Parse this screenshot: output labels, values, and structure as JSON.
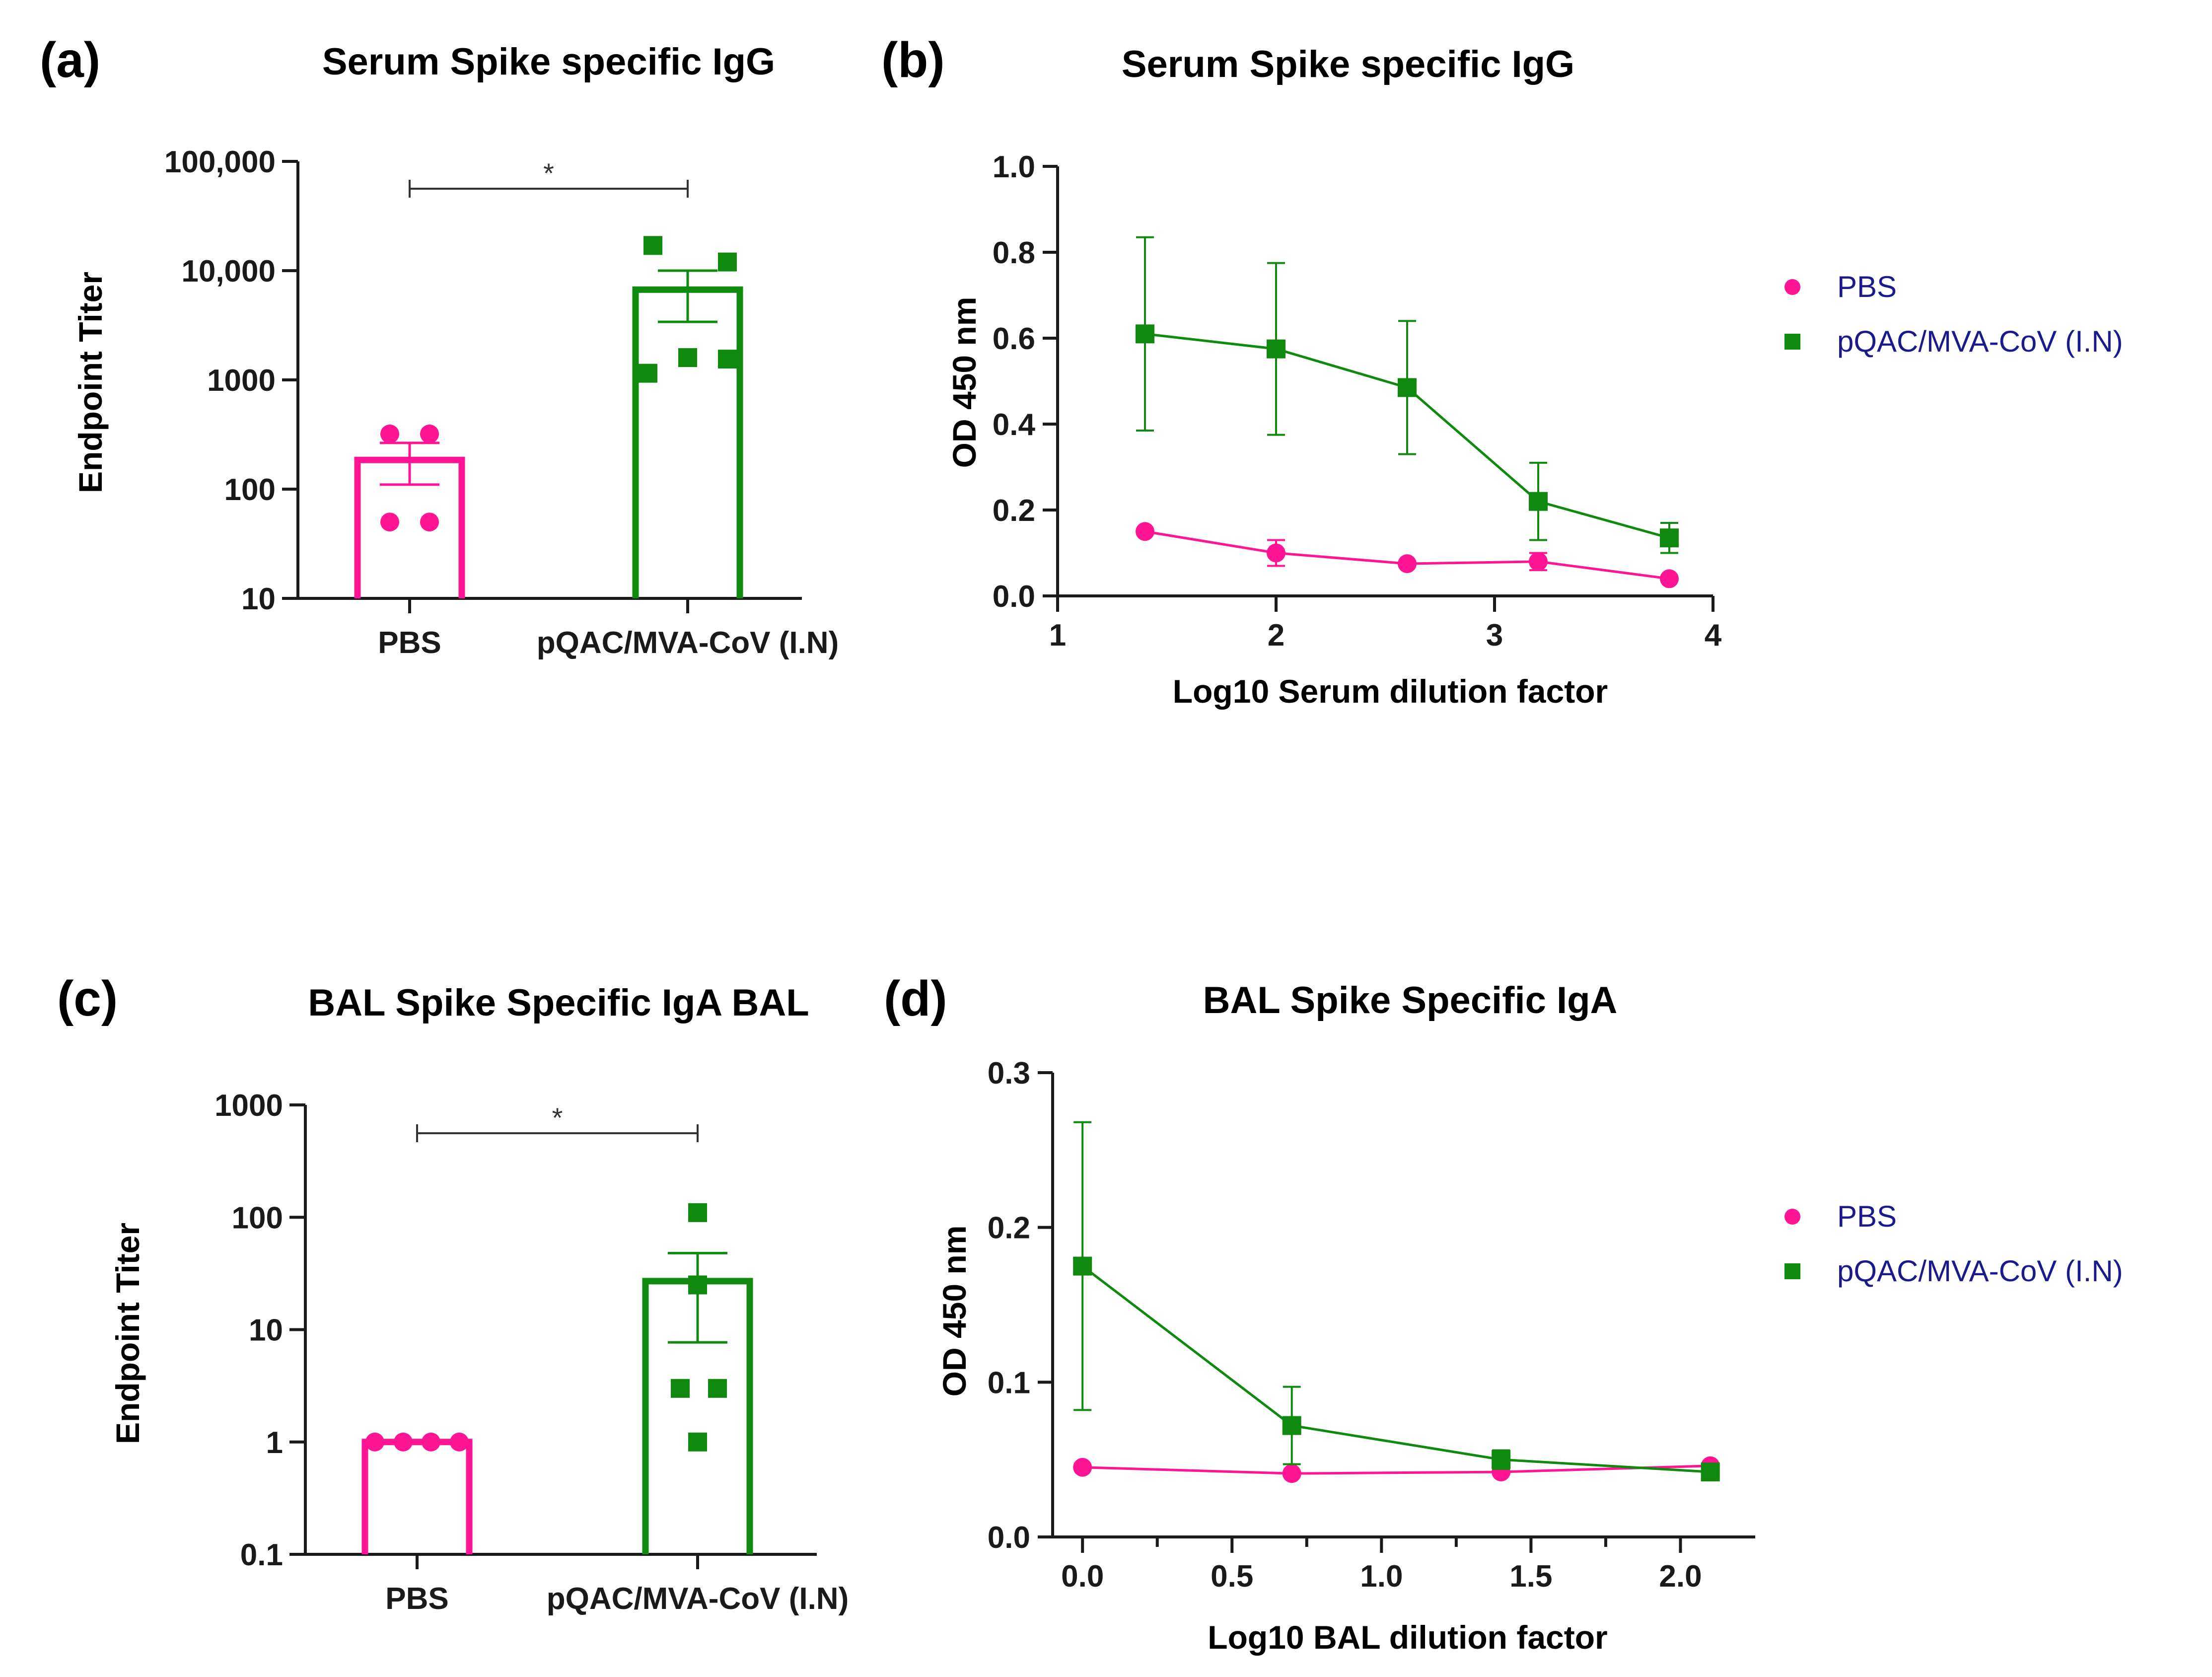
{
  "colors": {
    "pbs": "#ff1493",
    "mva": "#0f8a0f",
    "axis": "#1a1a1a",
    "legend_text": "#1a1a8c"
  },
  "chart_data": [
    {
      "panel": "(a)",
      "type": "bar",
      "title": "Serum Spike specific IgG",
      "ylabel": "Endpoint Titer",
      "xlabel": "",
      "yscale": "log",
      "ylim": [
        10,
        100000
      ],
      "yticks": [
        10,
        100,
        1000,
        10000,
        100000
      ],
      "ytick_labels": [
        "10",
        "100",
        "1000",
        "10,000",
        "100,000"
      ],
      "categories": [
        "PBS",
        "pQAC/MVA-CoV (I.N)"
      ],
      "bar_colors": [
        "pbs",
        "mva"
      ],
      "values": [
        185,
        6700
      ],
      "error_low": [
        110,
        3400
      ],
      "error_high": [
        265,
        10000
      ],
      "points": [
        [
          320,
          320,
          50,
          50
        ],
        [
          17000,
          12000,
          1150,
          1600,
          1550
        ]
      ],
      "markers": [
        "circle",
        "square"
      ],
      "significance": {
        "label": "*",
        "from": 0,
        "to": 1
      }
    },
    {
      "panel": "(b)",
      "type": "line",
      "title": "Serum Spike specific IgG",
      "xlabel": "Log10 Serum dilution factor",
      "ylabel": "OD 450 nm",
      "xlim": [
        1,
        4
      ],
      "ylim": [
        0,
        1.0
      ],
      "xticks": [
        1,
        2,
        3,
        4
      ],
      "xtick_labels": [
        "1",
        "2",
        "3",
        "4"
      ],
      "yticks": [
        0,
        0.2,
        0.4,
        0.6,
        0.8,
        1.0
      ],
      "ytick_labels": [
        "0.0",
        "0.2",
        "0.4",
        "0.6",
        "0.8",
        "1.0"
      ],
      "series": [
        {
          "name": "PBS",
          "color": "pbs",
          "marker": "circle",
          "x": [
            1.4,
            2.0,
            2.6,
            3.2,
            3.8
          ],
          "y": [
            0.15,
            0.1,
            0.075,
            0.08,
            0.04
          ],
          "err": [
            0,
            0.03,
            0,
            0.02,
            0
          ]
        },
        {
          "name": "pQAC/MVA-CoV (I.N)",
          "color": "mva",
          "marker": "square",
          "x": [
            1.4,
            2.0,
            2.6,
            3.2,
            3.8
          ],
          "y": [
            0.61,
            0.575,
            0.485,
            0.22,
            0.135
          ],
          "err": [
            0.225,
            0.2,
            0.155,
            0.09,
            0.035
          ]
        }
      ],
      "legend": "right"
    },
    {
      "panel": "(c)",
      "type": "bar",
      "title": "BAL Spike Specific IgA BAL",
      "ylabel": "Endpoint Titer",
      "xlabel": "",
      "yscale": "log",
      "ylim": [
        0.1,
        1000
      ],
      "yticks": [
        0.1,
        1,
        10,
        100,
        1000
      ],
      "ytick_labels": [
        "0.1",
        "1",
        "10",
        "100",
        "1000"
      ],
      "categories": [
        "PBS",
        "pQAC/MVA-CoV (I.N)"
      ],
      "bar_colors": [
        "pbs",
        "mva"
      ],
      "values": [
        1,
        27
      ],
      "error_low": [
        1,
        7.7
      ],
      "error_high": [
        1,
        48
      ],
      "points": [
        [
          1,
          1,
          1,
          1
        ],
        [
          110,
          25,
          3,
          3,
          1
        ]
      ],
      "markers": [
        "circle",
        "square"
      ],
      "significance": {
        "label": "*",
        "from": 0,
        "to": 1
      }
    },
    {
      "panel": "(d)",
      "type": "line",
      "title": "BAL Spike Specific IgA",
      "xlabel": "Log10 BAL dilution factor",
      "ylabel": "OD 450 nm",
      "xlim": [
        -0.1,
        2.25
      ],
      "ylim": [
        0,
        0.3
      ],
      "xticks": [
        0,
        0.5,
        1.0,
        1.5,
        2.0
      ],
      "xtick_labels": [
        "0.0",
        "0.5",
        "1.0",
        "1.5",
        "2.0"
      ],
      "minor_xticks": [
        0.25,
        0.75,
        1.25,
        1.75
      ],
      "yticks": [
        0,
        0.1,
        0.2,
        0.3
      ],
      "ytick_labels": [
        "0.0",
        "0.1",
        "0.2",
        "0.3"
      ],
      "series": [
        {
          "name": "PBS",
          "color": "pbs",
          "marker": "circle",
          "x": [
            0,
            0.7,
            1.4,
            2.1
          ],
          "y": [
            0.045,
            0.041,
            0.042,
            0.046
          ],
          "err": [
            0,
            0,
            0,
            0
          ]
        },
        {
          "name": "pQAC/MVA-CoV (I.N)",
          "color": "mva",
          "marker": "square",
          "x": [
            0,
            0.7,
            1.4,
            2.1
          ],
          "y": [
            0.175,
            0.072,
            0.05,
            0.042
          ],
          "err": [
            0.093,
            0.025,
            0.006,
            0
          ]
        }
      ],
      "legend": "right"
    }
  ]
}
